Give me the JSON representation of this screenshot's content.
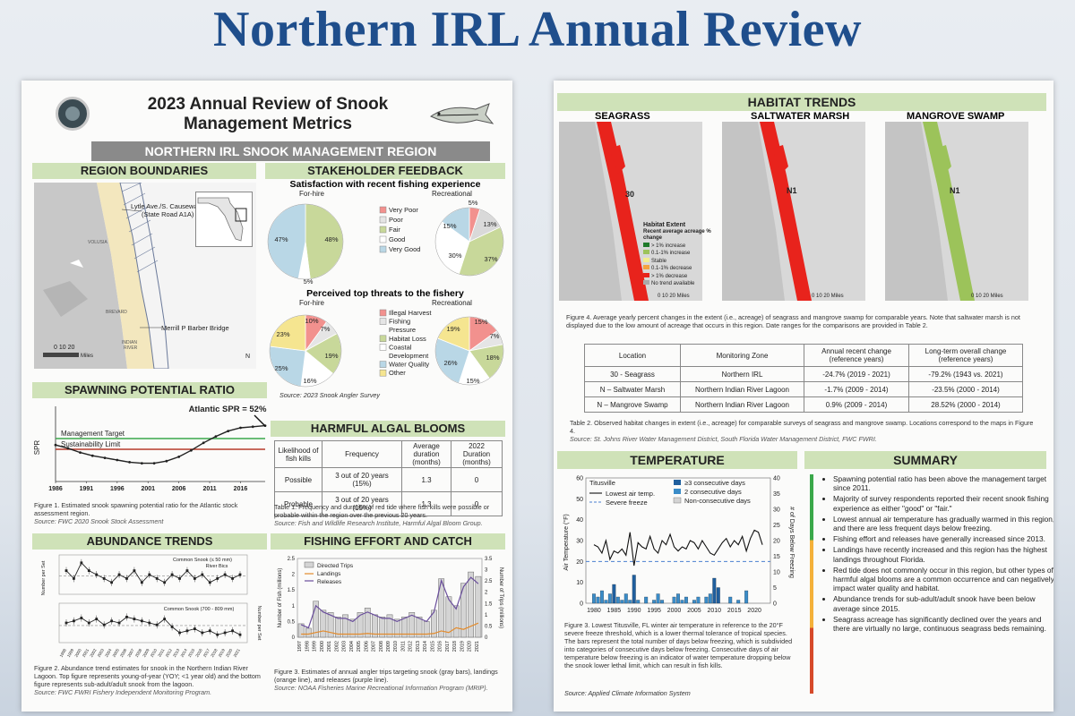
{
  "banner_title": "Northern IRL Annual Review",
  "left": {
    "title_line1": "2023 Annual Review of Snook",
    "title_line2": "Management Metrics",
    "region_bar": "NORTHERN IRL SNOOK MANAGEMENT REGION",
    "region_boundaries": {
      "heading": "REGION BOUNDARIES",
      "label_lytle": "Lytle Ave./S. Causeway",
      "label_lytle2": "(State Road A1A)",
      "label_merrill": "Merrill P Barber Bridge",
      "county_volusia": "VOLUSIA",
      "county_brevard": "BREVARD",
      "county_indian": "INDIAN",
      "county_river": "RIVER",
      "scale": "0  10  20",
      "scale_unit": "Miles",
      "north": "N"
    },
    "stakeholder": {
      "heading": "STAKEHOLDER FEEDBACK",
      "sub1": "Satisfaction with recent fishing experience",
      "forhire": "For-hire",
      "recreational": "Recreational",
      "legend1": [
        "Very Poor",
        "Poor",
        "Fair",
        "Good",
        "Very Good"
      ],
      "sat_forhire_labels": [
        "47%",
        "48%",
        "5%"
      ],
      "sat_rec_labels": [
        "5%",
        "13%",
        "37%",
        "30%",
        "15%"
      ],
      "sub2": "Perceived top threats to the fishery",
      "legend2": [
        "Illegal Harvest",
        "Fishing",
        "Pressure",
        "Habitat Loss",
        "Coastal",
        "Development",
        "Water Quality",
        "Other"
      ],
      "thr_forhire_labels": [
        "10%",
        "7%",
        "19%",
        "16%",
        "25%",
        "23%"
      ],
      "thr_rec_labels": [
        "15%",
        "7%",
        "18%",
        "15%",
        "26%",
        "19%"
      ],
      "source": "Source: 2023 Snook Angler Survey"
    },
    "spr": {
      "heading": "SPAWNING POTENTIAL RATIO",
      "annotation": "Atlantic SPR = 52%",
      "ylabel": "SPR",
      "target": "Management Target",
      "limit": "Sustainability Limit",
      "caption": "Figure 1. Estimated snook spawning potential ratio for the Atlantic stock assessment region.",
      "source": "Source: FWC 2020 Snook Stock Assessment"
    },
    "hab": {
      "heading": "HARMFUL ALGAL BLOOMS",
      "headers": [
        "Likelihood of fish kills",
        "Frequency",
        "Average duration (months)",
        "2022 Duration (months)"
      ],
      "rows": [
        [
          "Possible",
          "3 out of 20 years (15%)",
          "1.3",
          "0"
        ],
        [
          "Probable",
          "3 out of 20 years (15%)",
          "1.3",
          "0"
        ]
      ],
      "caption": "Table 1. Frequency and duration of red tide where fish kills were possible or probable within the region over the previous 20 years.",
      "source": "Source: Fish and Wildlife Research Institute, Harmful Algal Bloom Group."
    },
    "abundance": {
      "heading": "ABUNDANCE TRENDS",
      "top_label1": "Common Snook (≤ 50 mm)",
      "top_label2": "River Bics",
      "bottom_label": "Common Snook (700 - 809 mm)",
      "ylabel_left": "Number per Set",
      "ylabel_right": "Number per Set",
      "caption": "Figure 2. Abundance trend estimates for snook in the Northern Indian River Lagoon. Top figure represents young-of-year (YOY; <1 year old) and the bottom figure represents sub-adult/adult snook from the lagoon.",
      "source": "Source: FWC FWRI Fishery Independent Monitoring Program."
    },
    "effort": {
      "heading": "FISHING EFFORT AND CATCH",
      "legend": [
        "Directed Trips",
        "Landings",
        "Releases"
      ],
      "ylabel_left": "Number of Fish (millions)",
      "ylabel_right": "Number of Trips (millions)",
      "caption": "Figure 3. Estimates of annual angler trips targeting snook (gray bars), landings (orange line), and releases (purple line).",
      "source": "Source: NOAA Fisheries Marine Recreational Information Program (MRIP)."
    }
  },
  "right": {
    "habitat_heading": "HABITAT TRENDS",
    "map_titles": [
      "SEAGRASS",
      "SALTWATER MARSH",
      "MANGROVE SWAMP"
    ],
    "map_labels": [
      "30",
      "N1",
      "N1"
    ],
    "legend_title": "Habitat Extent",
    "legend_sub": "Recent average acreage % change",
    "legend_items": [
      "> 1% increase",
      "0.1-1% increase",
      "Stable",
      "0.1-1% decrease",
      "> 1% decrease",
      "No trend available"
    ],
    "map_scale": "0   10   20 Miles",
    "fig4_caption": "Figure 4. Average yearly percent changes in the extent (i.e., acreage) of seagrass and mangrove swamp for comparable years. Note that saltwater marsh is not displayed due to the low amount of acreage that occurs in this region. Date ranges for the comparisons are provided in Table 2.",
    "table2_headers": [
      "Location",
      "Monitoring Zone",
      "Annual recent change (reference years)",
      "Long-term overall change (reference years)"
    ],
    "table2_rows": [
      [
        "30 - Seagrass",
        "Northern IRL",
        "-24.7% (2019 - 2021)",
        "-79.2% (1943 vs. 2021)"
      ],
      [
        "N – Saltwater Marsh",
        "Northern Indian River Lagoon",
        "-1.7% (2009 - 2014)",
        "-23.5% (2000 - 2014)"
      ],
      [
        "N – Mangrove Swamp",
        "Northern Indian River Lagoon",
        "0.9% (2009 - 2014)",
        "28.52% (2000 - 2014)"
      ]
    ],
    "table2_caption": "Table 2. Observed habitat changes in extent (i.e., acreage) for comparable surveys of seagrass and mangrove swamp. Locations correspond to the maps in Figure 4.",
    "table2_source": "Source: St. Johns River Water Management District, South Florida Water Management District, FWC FWRI.",
    "temp_heading": "TEMPERATURE",
    "temp_station": "Titusville",
    "temp_legend": [
      "Lowest air temp.",
      "Severe freeze",
      "≥3 consecutive days",
      "2 consecutive days",
      "Non-consecutive days"
    ],
    "temp_ylabel_left": "Air Temperature (°F)",
    "temp_ylabel_right": "# of Days Below Freezing",
    "temp_caption": "Figure 3. Lowest Titusville, FL winter air temperature in reference to the 20°F severe freeze threshold, which is a lower thermal tolerance of tropical species. The bars represent the total number of days below freezing, which is subdivided into categories of consecutive days below freezing. Consecutive days of air temperature below freezing is an indicator of water temperature dropping below the snook lower lethal limit, which can result in fish kills.",
    "temp_source": "Source: Applied Climate Information System",
    "summary_heading": "SUMMARY",
    "summary_items": [
      "Spawning potential ratio has been above the management target since 2011.",
      "Majority of survey respondents reported their recent snook fishing experience as either \"good\" or \"fair.\"",
      "Lowest annual air temperature has gradually warmed in this region, and there are less frequent days below freezing.",
      "Fishing effort and releases have generally increased since 2013.",
      "Landings have recently increased and this region has the highest landings throughout Florida.",
      "Red tide does not commonly occur in this region, but other types of harmful algal blooms are a common occurrence and can negatively impact water quality and habitat.",
      "Abundance trends for sub-adult/adult snook have been below average since 2015.",
      "Seagrass acreage has significantly declined over the years and there are virtually no large, continuous seagrass beds remaining."
    ]
  },
  "chart_data": [
    {
      "type": "line",
      "title": "SPAWNING POTENTIAL RATIO",
      "ylabel": "SPR",
      "x": [
        1986,
        1988,
        1990,
        1992,
        1994,
        1996,
        1998,
        2000,
        2002,
        2004,
        2006,
        2008,
        2010,
        2012,
        2014,
        2016,
        2018,
        2020
      ],
      "values": [
        0.34,
        0.31,
        0.27,
        0.24,
        0.22,
        0.2,
        0.18,
        0.17,
        0.17,
        0.19,
        0.23,
        0.29,
        0.36,
        0.42,
        0.47,
        0.5,
        0.51,
        0.52
      ],
      "reference_lines": [
        {
          "name": "Management Target",
          "y": 0.4,
          "color": "#3aa84a"
        },
        {
          "name": "Sustainability Limit",
          "y": 0.3,
          "color": "#b73a2a"
        }
      ],
      "xticks": [
        "1986",
        "1991",
        "1996",
        "2001",
        "2006",
        "2011",
        "2016"
      ],
      "ylim": [
        0,
        0.7
      ]
    },
    {
      "type": "bar",
      "title": "FISHING EFFORT AND CATCH",
      "categories": [
        "1997",
        "1998",
        "1999",
        "2000",
        "2001",
        "2002",
        "2003",
        "2004",
        "2005",
        "2006",
        "2007",
        "2008",
        "2009",
        "2010",
        "2011",
        "2012",
        "2013",
        "2014",
        "2015",
        "2016",
        "2017",
        "2018",
        "2019",
        "2020",
        "2021"
      ],
      "series": [
        {
          "name": "Directed Trips",
          "values": [
            0.6,
            0.4,
            1.6,
            1.2,
            1.1,
            0.9,
            1.0,
            0.8,
            1.1,
            1.3,
            1.0,
            0.9,
            1.0,
            0.8,
            0.9,
            1.1,
            0.9,
            0.7,
            1.2,
            2.6,
            1.8,
            1.4,
            2.4,
            2.9,
            2.7
          ]
        },
        {
          "name": "Landings",
          "values": [
            0.1,
            0.1,
            0.15,
            0.2,
            0.15,
            0.1,
            0.1,
            0.1,
            0.1,
            0.12,
            0.1,
            0.1,
            0.1,
            0.1,
            0.1,
            0.1,
            0.1,
            0.1,
            0.12,
            0.2,
            0.15,
            0.3,
            0.25,
            0.35,
            0.45
          ]
        },
        {
          "name": "Releases",
          "values": [
            0.4,
            0.3,
            1.0,
            0.8,
            0.7,
            0.6,
            0.6,
            0.5,
            0.7,
            0.8,
            0.7,
            0.6,
            0.6,
            0.5,
            0.6,
            0.7,
            0.6,
            0.5,
            0.8,
            1.8,
            1.2,
            0.9,
            1.6,
            1.9,
            1.7
          ]
        }
      ],
      "ylabel": "Number of Fish (millions)",
      "y2label": "Number of Trips (millions)",
      "ylim": [
        0,
        2.5
      ],
      "y2lim": [
        0,
        3.5
      ]
    },
    {
      "type": "line",
      "title": "TEMPERATURE",
      "x": [
        1980,
        1981,
        1982,
        1983,
        1984,
        1985,
        1986,
        1987,
        1988,
        1989,
        1990,
        1991,
        1992,
        1993,
        1994,
        1995,
        1996,
        1997,
        1998,
        1999,
        2000,
        2001,
        2002,
        2003,
        2004,
        2005,
        2006,
        2007,
        2008,
        2009,
        2010,
        2011,
        2012,
        2013,
        2014,
        2015,
        2016,
        2017,
        2018,
        2019,
        2020,
        2021,
        2022
      ],
      "values": [
        28,
        27,
        24,
        30,
        21,
        25,
        24,
        26,
        23,
        34,
        18,
        29,
        27,
        26,
        32,
        26,
        24,
        30,
        28,
        33,
        27,
        25,
        27,
        26,
        30,
        29,
        26,
        30,
        27,
        24,
        23,
        26,
        29,
        31,
        27,
        30,
        28,
        32,
        25,
        31,
        35,
        34,
        28
      ],
      "bars": [
        3,
        2,
        4,
        1,
        3,
        6,
        2,
        1,
        3,
        1,
        9,
        1,
        0,
        2,
        0,
        1,
        3,
        1,
        0,
        0,
        2,
        3,
        1,
        2,
        0,
        1,
        2,
        0,
        2,
        3,
        8,
        5,
        0,
        0,
        2,
        0,
        1,
        0,
        4,
        0,
        0,
        0,
        0
      ],
      "severe_freeze": 20,
      "ylim": [
        0,
        60
      ],
      "y2lim": [
        0,
        40
      ]
    }
  ]
}
